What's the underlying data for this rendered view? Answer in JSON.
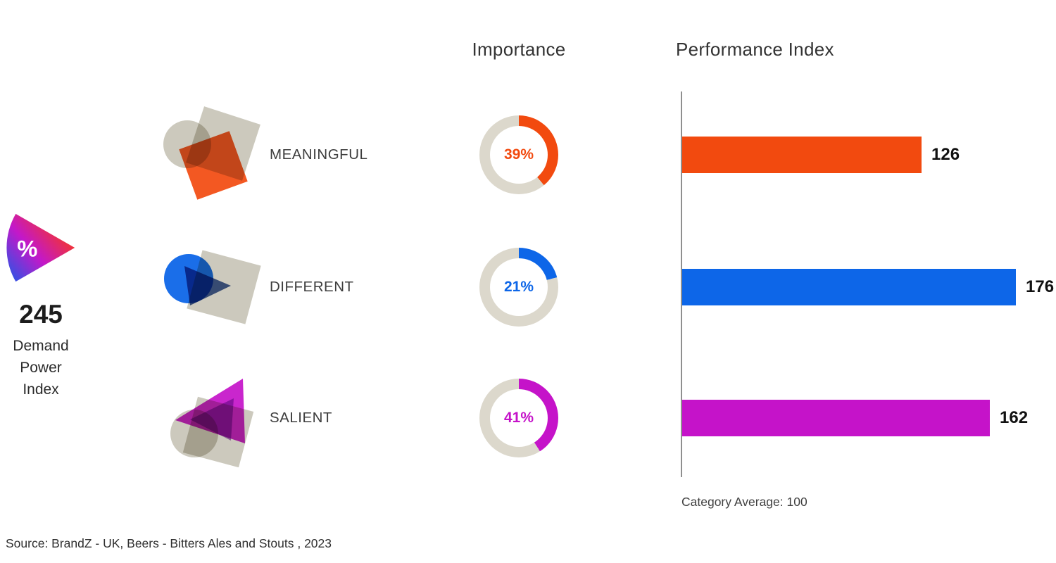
{
  "header": {
    "importance_title": "Importance",
    "performance_title": "Performance Index"
  },
  "left_panel": {
    "percent_symbol": "%",
    "score": "245",
    "label_lines": [
      "Demand",
      "Power",
      "Index"
    ]
  },
  "rows": [
    {
      "label": "MEANINGFUL",
      "importance_label": "39%",
      "importance_pct": 39,
      "performance_label": "126",
      "performance_value": 126,
      "color": "#F24A0F"
    },
    {
      "label": "DIFFERENT",
      "importance_label": "21%",
      "importance_pct": 21,
      "performance_label": "176",
      "performance_value": 176,
      "color": "#0D66E8"
    },
    {
      "label": "SALIENT",
      "importance_label": "41%",
      "importance_pct": 41,
      "performance_label": "162",
      "performance_value": 162,
      "color": "#C513C9"
    }
  ],
  "footer": {
    "category_average": "Category Average: 100",
    "source": "Source: BrandZ - UK, Beers - Bitters Ales and Stouts , 2023"
  },
  "chart_data": {
    "type": "bar",
    "title": "Demand Power Index",
    "categories": [
      "MEANINGFUL",
      "DIFFERENT",
      "SALIENT"
    ],
    "series": [
      {
        "name": "Importance",
        "unit": "%",
        "values": [
          39,
          21,
          41
        ]
      },
      {
        "name": "Performance Index",
        "values": [
          126,
          176,
          162
        ]
      }
    ],
    "demand_power_index": 245,
    "category_average": 100,
    "performance_axis_max": 180,
    "colors": [
      "#F24A0F",
      "#0D66E8",
      "#C513C9"
    ],
    "track_color": "#DCD8CC",
    "legend_position": "none",
    "grid": false
  }
}
